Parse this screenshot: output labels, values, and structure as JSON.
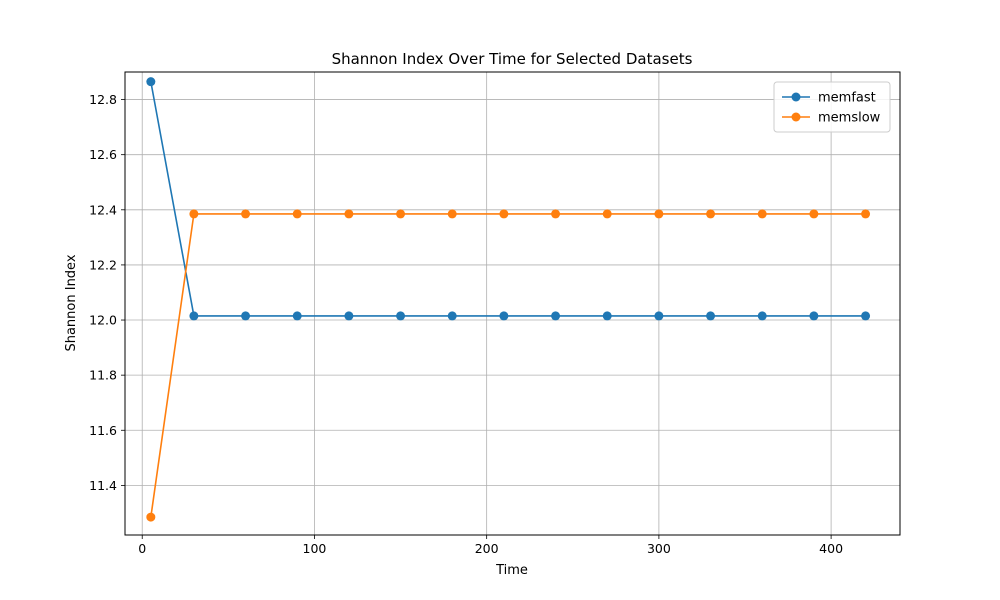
{
  "chart_data": {
    "type": "line",
    "title": "Shannon Index Over Time for Selected Datasets",
    "xlabel": "Time",
    "ylabel": "Shannon Index",
    "xlim": [
      -10,
      440
    ],
    "ylim": [
      11.22,
      12.9
    ],
    "x_ticks": [
      0,
      100,
      200,
      300,
      400
    ],
    "y_ticks": [
      11.4,
      11.6,
      11.8,
      12.0,
      12.2,
      12.4,
      12.6,
      12.8
    ],
    "grid": true,
    "legend_position": "top-right",
    "x": [
      5,
      30,
      60,
      90,
      120,
      150,
      180,
      210,
      240,
      270,
      300,
      330,
      360,
      390,
      420
    ],
    "series": [
      {
        "name": "memfast",
        "color": "#1f77b4",
        "values": [
          12.865,
          12.015,
          12.015,
          12.015,
          12.015,
          12.015,
          12.015,
          12.015,
          12.015,
          12.015,
          12.015,
          12.015,
          12.015,
          12.015,
          12.015
        ]
      },
      {
        "name": "memslow",
        "color": "#ff7f0e",
        "values": [
          11.285,
          12.385,
          12.385,
          12.385,
          12.385,
          12.385,
          12.385,
          12.385,
          12.385,
          12.385,
          12.385,
          12.385,
          12.385,
          12.385,
          12.385
        ]
      }
    ]
  }
}
